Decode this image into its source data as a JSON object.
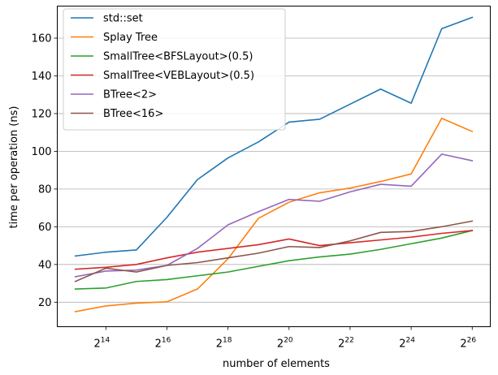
{
  "chart_data": {
    "type": "line",
    "title": "",
    "xlabel": "number of elements",
    "ylabel": "time per operation (ns)",
    "x_scale": "log2",
    "x": [
      8192,
      16384,
      32768,
      65536,
      131072,
      262144,
      524288,
      1048576,
      2097152,
      4194304,
      8388608,
      16777216,
      33554432,
      67108864
    ],
    "x_tick_labels": [
      {
        "base": "2",
        "exp": "14"
      },
      {
        "base": "2",
        "exp": "16"
      },
      {
        "base": "2",
        "exp": "18"
      },
      {
        "base": "2",
        "exp": "20"
      },
      {
        "base": "2",
        "exp": "22"
      },
      {
        "base": "2",
        "exp": "24"
      },
      {
        "base": "2",
        "exp": "26"
      }
    ],
    "y_ticks": [
      "20",
      "40",
      "60",
      "80",
      "100",
      "120",
      "140",
      "160"
    ],
    "ylim": [
      7,
      177
    ],
    "grid": "horizontal",
    "legend_position": "top-left",
    "series": [
      {
        "name": "std::set",
        "color": "#1f77b4",
        "values": [
          44.5,
          46.5,
          47.7,
          65,
          85,
          96.5,
          105,
          115.5,
          117,
          125,
          133,
          125.5,
          165,
          171
        ]
      },
      {
        "name": "Splay Tree",
        "color": "#ff7f0e",
        "values": [
          15,
          18,
          19.5,
          20.2,
          27,
          43,
          64.5,
          73,
          78,
          80.5,
          84,
          88,
          117.5,
          110.5
        ]
      },
      {
        "name": "SmallTree<BFSLayout>(0.5)",
        "color": "#2ca02c",
        "values": [
          27,
          27.5,
          31,
          32,
          34,
          36,
          39,
          42,
          44,
          45.5,
          48,
          51,
          54,
          58
        ]
      },
      {
        "name": "SmallTree<VEBLayout>(0.5)",
        "color": "#d62728",
        "values": [
          37.5,
          38.5,
          40,
          43.5,
          46.5,
          48.5,
          50.5,
          53.5,
          50,
          51.5,
          53,
          54.5,
          56.5,
          58
        ]
      },
      {
        "name": "BTree<2>",
        "color": "#9467bd",
        "values": [
          33.5,
          36.5,
          37,
          39.5,
          48.5,
          61,
          68,
          74.5,
          73.5,
          78.5,
          82.5,
          81.5,
          98.5,
          95
        ]
      },
      {
        "name": "BTree<16>",
        "color": "#8c564b",
        "values": [
          31,
          38,
          36,
          39.5,
          41,
          43.5,
          46,
          49.5,
          49,
          52.5,
          57,
          57.5,
          60,
          63
        ]
      }
    ]
  }
}
